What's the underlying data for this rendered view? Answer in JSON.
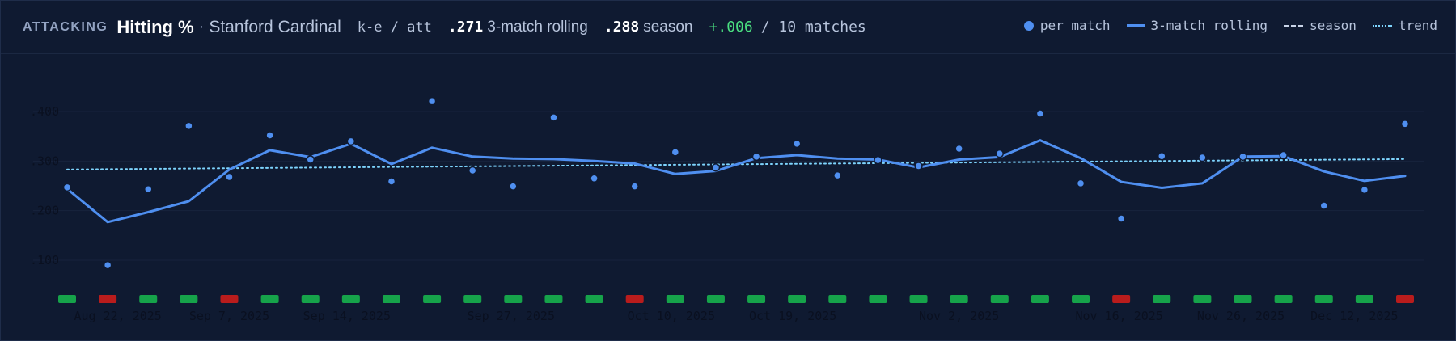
{
  "header": {
    "eyebrow": "ATTACKING",
    "title": "Hitting %",
    "separator": "·",
    "team": "Stanford Cardinal",
    "formula": "k-e / att",
    "rolling_value": ".271",
    "rolling_label": "3-match rolling",
    "season_value": ".288",
    "season_label": "season",
    "delta": "+.006",
    "match_count": "/ 10 matches"
  },
  "legend": {
    "per_match": "per match",
    "rolling": "3-match rolling",
    "season": "season",
    "trend": "trend"
  },
  "colors": {
    "background": "#0f1a31",
    "point": "#4f8ff0",
    "rolling": "#4f8ff0",
    "trend": "#7dd3fc",
    "win": "#16a34a",
    "loss": "#b91c1c"
  },
  "chart_data": {
    "type": "line",
    "ylim": [
      0.02,
      0.48
    ],
    "yticks": [
      ".100",
      ".200",
      ".300",
      ".400"
    ],
    "ytick_values": [
      0.1,
      0.2,
      0.3,
      0.4
    ],
    "xtick_labels": [
      "Aug 22, 2025",
      "Sep 7, 2025",
      "Sep 14, 2025",
      "Sep 27, 2025",
      "Oct 10, 2025",
      "Oct 19, 2025",
      "Nov 2, 2025",
      "Nov 16, 2025",
      "Nov 26, 2025",
      "Dec 12, 2025"
    ],
    "xtick_match_index": [
      1.25,
      4.0,
      6.9,
      10.95,
      14.9,
      17.9,
      22.0,
      25.95,
      28.95,
      31.75
    ],
    "grid": true,
    "legend_position": "top-right",
    "series": [
      {
        "name": "per match",
        "kind": "points",
        "values": [
          0.247,
          0.09,
          0.243,
          0.371,
          0.268,
          0.352,
          0.303,
          0.34,
          0.259,
          0.421,
          0.281,
          0.249,
          0.388,
          0.265,
          0.249,
          0.318,
          0.287,
          0.309,
          0.335,
          0.271,
          0.302,
          0.29,
          0.325,
          0.315,
          0.396,
          0.255,
          0.184,
          0.31,
          0.307,
          0.309,
          0.312,
          0.21,
          0.242,
          0.375
        ]
      },
      {
        "name": "3-match rolling",
        "kind": "line",
        "values": [
          0.244,
          0.177,
          0.197,
          0.219,
          0.283,
          0.322,
          0.308,
          0.335,
          0.294,
          0.327,
          0.309,
          0.305,
          0.304,
          0.3,
          0.295,
          0.274,
          0.28,
          0.306,
          0.312,
          0.305,
          0.303,
          0.287,
          0.303,
          0.308,
          0.342,
          0.306,
          0.258,
          0.246,
          0.255,
          0.309,
          0.31,
          0.279,
          0.26,
          0.27
        ]
      },
      {
        "name": "trend",
        "kind": "dotted",
        "start": 0.283,
        "end": 0.304
      }
    ],
    "results": [
      "W",
      "L",
      "W",
      "W",
      "L",
      "W",
      "W",
      "W",
      "W",
      "W",
      "W",
      "W",
      "W",
      "W",
      "L",
      "W",
      "W",
      "W",
      "W",
      "W",
      "W",
      "W",
      "W",
      "W",
      "W",
      "W",
      "L",
      "W",
      "W",
      "W",
      "W",
      "W",
      "W",
      "L"
    ]
  }
}
